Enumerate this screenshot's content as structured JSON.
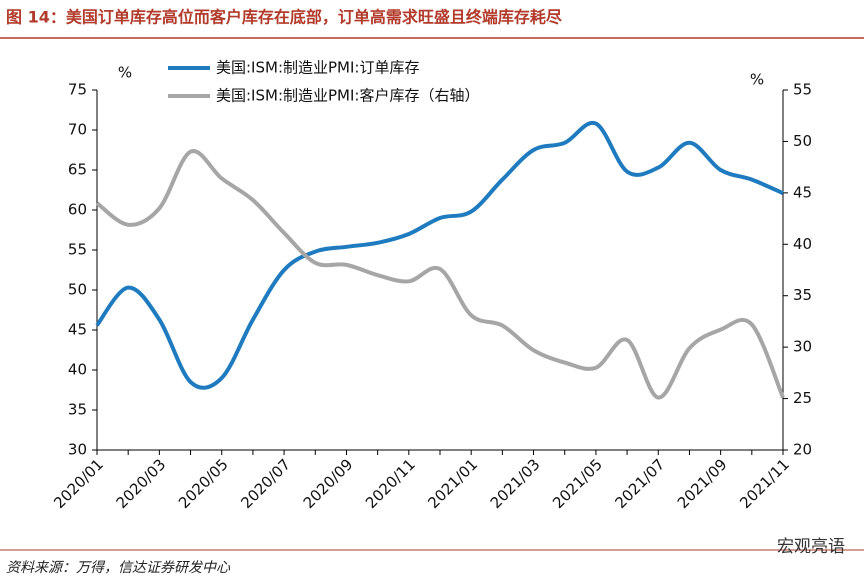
{
  "chart_data": {
    "type": "line",
    "title": "图 14：美国订单库存高位而客户库存在底部，订单高需求旺盛且终端库存耗尽",
    "source": "资料来源：万得，信达证券研发中心",
    "watermark": "宏观亮语",
    "ylabel": "%",
    "y2label": "%",
    "categories": [
      "2020/01",
      null,
      "2020/03",
      null,
      "2020/05",
      null,
      "2020/07",
      null,
      "2020/09",
      null,
      "2020/11",
      null,
      "2021/01",
      null,
      "2021/03",
      null,
      "2021/05",
      null,
      "2021/07",
      null,
      "2021/09",
      null,
      "2021/11"
    ],
    "series": [
      {
        "name": "美国:ISM:制造业PMI:订单库存",
        "color": "#1f7bbf",
        "axis": "y",
        "values": [
          45.6,
          50.3,
          46.3,
          38.5,
          39,
          46.3,
          52.5,
          54.8,
          55.4,
          55.9,
          57,
          59,
          59.8,
          63.8,
          67.5,
          68.4,
          70.8,
          64.8,
          65.3,
          68.4,
          65,
          63.8,
          62.1
        ]
      },
      {
        "name": "美国:ISM:制造业PMI:客户库存（右轴）",
        "color": "#a6a6a6",
        "axis": "y2",
        "values": [
          44,
          41.9,
          43.5,
          49,
          46.4,
          44.3,
          41.1,
          38.2,
          38,
          37,
          36.4,
          37.6,
          33.1,
          32.1,
          29.7,
          28.5,
          28,
          30.7,
          25.1,
          29.9,
          31.7,
          32.2,
          25.1
        ]
      }
    ],
    "ylim": [
      30,
      75
    ],
    "yticks": [
      30,
      35,
      40,
      45,
      50,
      55,
      60,
      65,
      70,
      75
    ],
    "y2lim": [
      20,
      55
    ],
    "y2ticks": [
      20,
      25,
      30,
      35,
      40,
      45,
      50,
      55
    ],
    "grid": false,
    "legend": "top"
  }
}
